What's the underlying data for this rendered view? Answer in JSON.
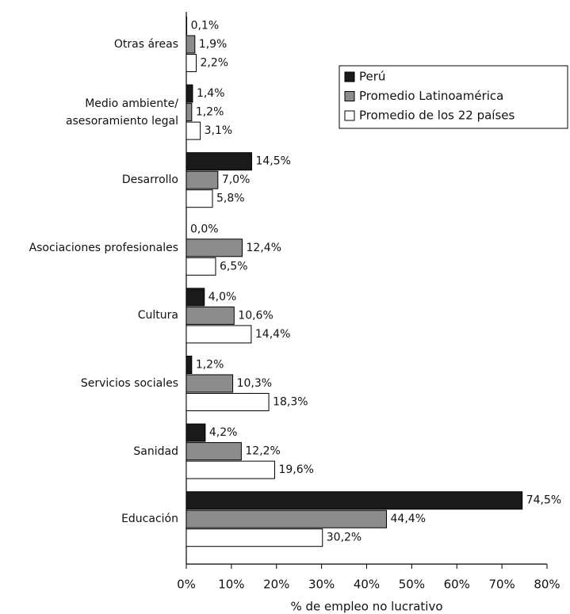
{
  "chart_data": {
    "type": "hbar",
    "categories": [
      "Otras áreas",
      "Medio ambiente/\nasesoramiento legal",
      "Desarrollo",
      "Asociaciones profesionales",
      "Cultura",
      "Servicios sociales",
      "Sanidad",
      "Educación"
    ],
    "series": [
      {
        "name": "Perú",
        "color": "#1a1a1a",
        "values": [
          0.1,
          1.4,
          14.5,
          0.0,
          4.0,
          1.2,
          4.2,
          74.5
        ],
        "value_labels": [
          "0,1%",
          "1,4%",
          "14,5%",
          "0,0%",
          "4,0%",
          "1,2%",
          "4,2%",
          "74,5%"
        ]
      },
      {
        "name": "Promedio Latinoamérica",
        "color": "#8c8c8c",
        "values": [
          1.9,
          1.2,
          7.0,
          12.4,
          10.6,
          10.3,
          12.2,
          44.4
        ],
        "value_labels": [
          "1,9%",
          "1,2%",
          "7,0%",
          "12,4%",
          "10,6%",
          "10,3%",
          "12,2%",
          "44,4%"
        ]
      },
      {
        "name": "Promedio de los 22 países",
        "color": "#ffffff",
        "values": [
          2.2,
          3.1,
          5.8,
          6.5,
          14.4,
          18.3,
          19.6,
          30.2
        ],
        "value_labels": [
          "2,2%",
          "3,1%",
          "5,8%",
          "6,5%",
          "14,4%",
          "18,3%",
          "19,6%",
          "30,2%"
        ]
      }
    ],
    "xlabel": "% de empleo no lucrativo",
    "xlim": [
      0,
      80
    ],
    "xticks": [
      {
        "value": 0,
        "label": "0%"
      },
      {
        "value": 10,
        "label": "10%"
      },
      {
        "value": 20,
        "label": "20%"
      },
      {
        "value": 30,
        "label": "30%"
      },
      {
        "value": 40,
        "label": "40%"
      },
      {
        "value": 50,
        "label": "50%"
      },
      {
        "value": 60,
        "label": "60%"
      },
      {
        "value": 70,
        "label": "70%"
      },
      {
        "value": 80,
        "label": "80%"
      }
    ],
    "legend": "upper right"
  }
}
